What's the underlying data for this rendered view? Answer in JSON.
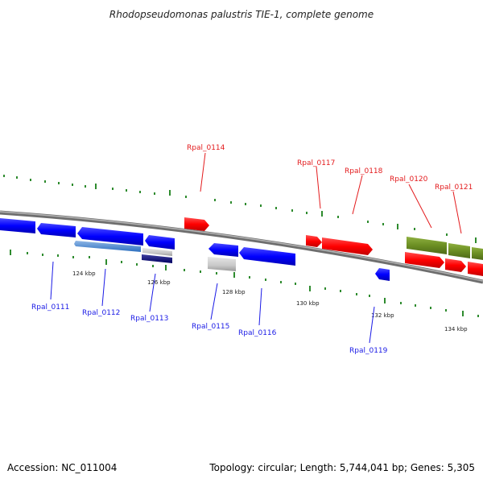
{
  "title": "Rhodopseudomonas palustris TIE-1, complete genome",
  "footer": {
    "accession": "Accession: NC_011004",
    "summary": "Topology: circular; Length: 5,744,041 bp; Genes: 5,305"
  },
  "colors": {
    "backbone": "#8c8c8c",
    "red_gene": "#ff0000",
    "blue_gene": "#0000ff",
    "olive_gene": "#6b8e23",
    "tick": "#2e8b2e",
    "red_label": "#e31a1c",
    "blue_label": "#1a1ae6"
  },
  "positions": {
    "tick_labels": [
      "124 kbp",
      "126 kbp",
      "128 kbp",
      "130 kbp",
      "132 kbp",
      "134 kbp"
    ]
  },
  "genes": {
    "forward_labels": [
      "Rpal_0114",
      "Rpal_0117",
      "Rpal_0118",
      "Rpal_0120",
      "Rpal_0121"
    ],
    "reverse_labels": [
      "Rpal_0111",
      "Rpal_0112",
      "Rpal_0113",
      "Rpal_0115",
      "Rpal_0116",
      "Rpal_0119"
    ]
  }
}
